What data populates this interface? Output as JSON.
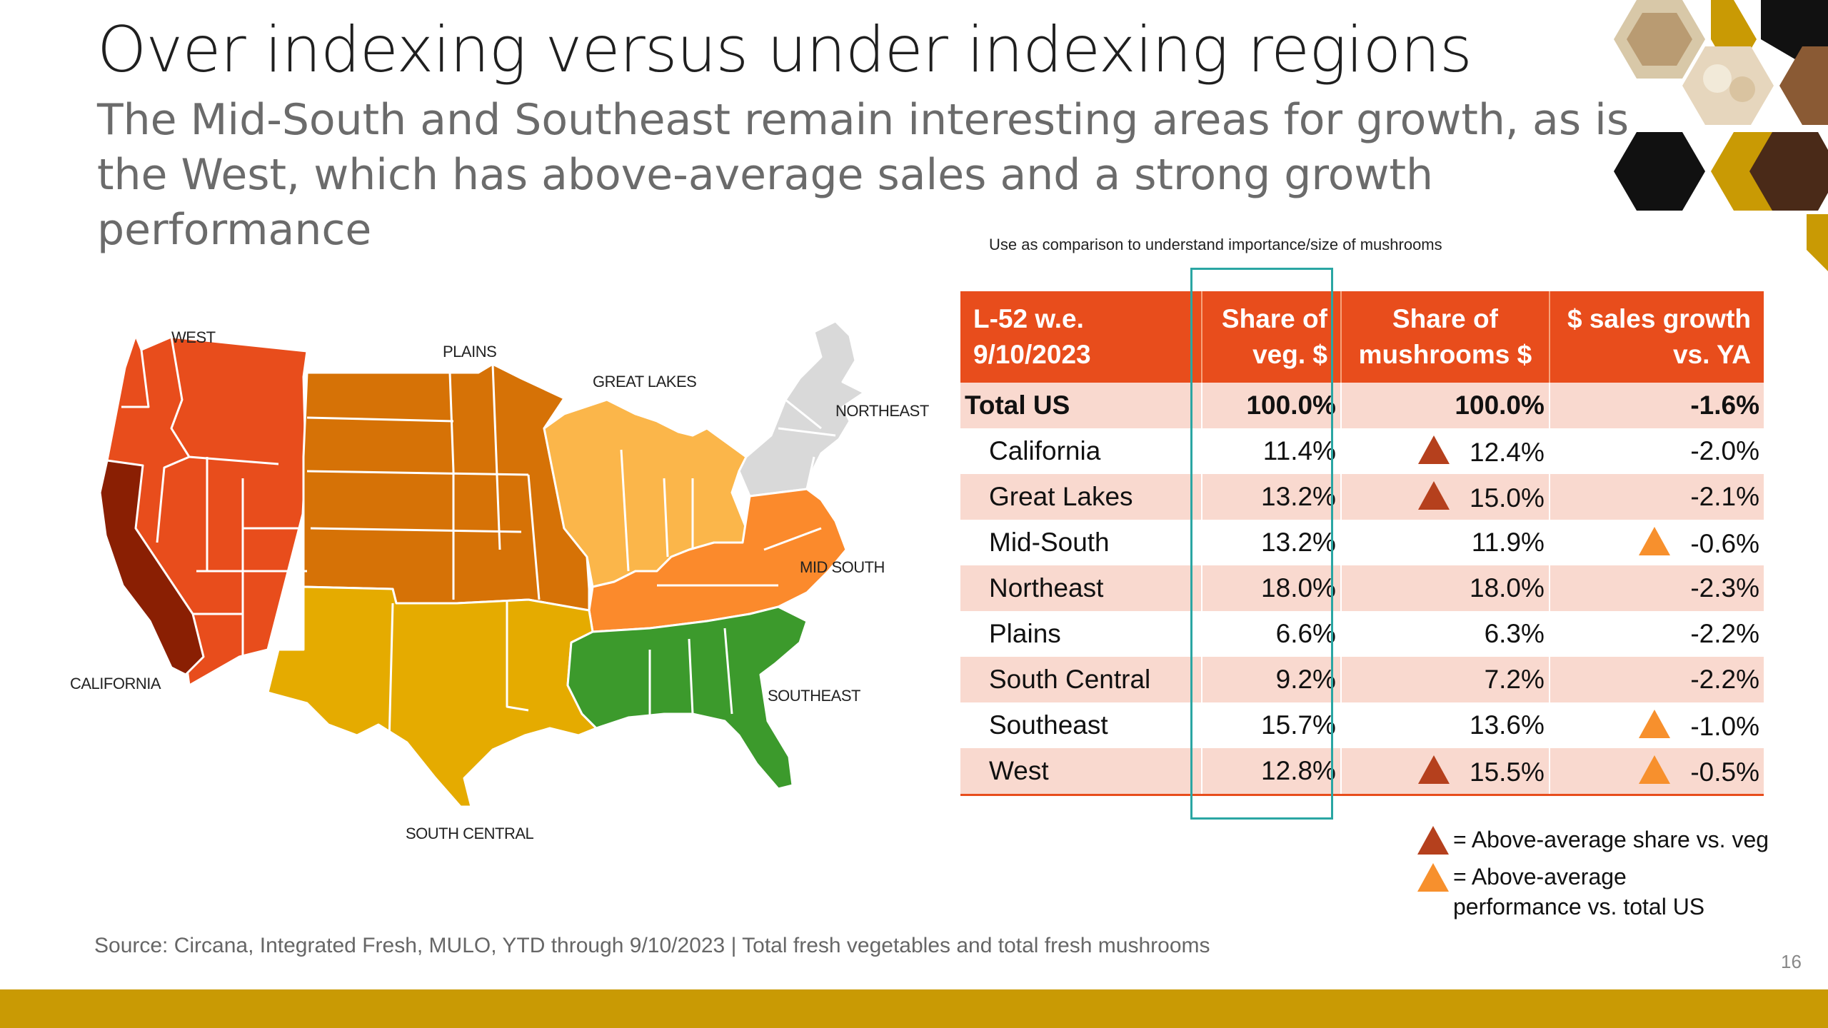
{
  "title": "Over indexing versus under indexing regions",
  "subtitle": "The Mid-South and Southeast remain interesting areas for growth, as is the West, which has above-average sales and a strong growth performance",
  "map": {
    "labels": {
      "west": "WEST",
      "plains": "PLAINS",
      "great_lakes": "GREAT LAKES",
      "northeast": "NORTHEAST",
      "mid_south": "MID SOUTH",
      "california": "CALIFORNIA",
      "southeast": "SOUTHEAST",
      "south_central": "SOUTH CENTRAL"
    },
    "colors": {
      "west": "#e84d1c",
      "california": "#8a1f03",
      "plains": "#d67206",
      "great_lakes": "#fbb64a",
      "northeast": "#d9d9d9",
      "mid_south": "#fb8a2c",
      "south_central": "#e5ab00",
      "southeast": "#3c9a2c"
    }
  },
  "table": {
    "note": "Use as comparison to understand importance/size of mushrooms",
    "headers": {
      "period": "L-52 w.e. 9/10/2023",
      "share_veg": "Share of veg. $",
      "share_mush": "Share of mushrooms $",
      "growth": "$ sales growth vs. YA"
    },
    "rows": [
      {
        "region": "Total US",
        "share_veg": "100.0%",
        "share_mush": "100.0%",
        "growth": "-1.6%"
      },
      {
        "region": "California",
        "share_veg": "11.4%",
        "share_mush": "12.4%",
        "growth": "-2.0%"
      },
      {
        "region": "Great Lakes",
        "share_veg": "13.2%",
        "share_mush": "15.0%",
        "growth": "-2.1%"
      },
      {
        "region": "Mid-South",
        "share_veg": "13.2%",
        "share_mush": "11.9%",
        "growth": "-0.6%"
      },
      {
        "region": "Northeast",
        "share_veg": "18.0%",
        "share_mush": "18.0%",
        "growth": "-2.3%"
      },
      {
        "region": "Plains",
        "share_veg": "6.6%",
        "share_mush": "6.3%",
        "growth": "-2.2%"
      },
      {
        "region": "South Central",
        "share_veg": "9.2%",
        "share_mush": "7.2%",
        "growth": "-2.2%"
      },
      {
        "region": "Southeast",
        "share_veg": "15.7%",
        "share_mush": "13.6%",
        "growth": "-1.0%"
      },
      {
        "region": "West",
        "share_veg": "12.8%",
        "share_mush": "15.5%",
        "growth": "-0.5%"
      }
    ]
  },
  "legend": {
    "dark": "= Above-average share vs. veg",
    "light_line1": "= Above-average",
    "light_line2": "performance vs. total US",
    "dark_color": "#b5401d",
    "light_color": "#f7902d"
  },
  "source": "Source: Circana, Integrated Fresh, MULO, YTD through 9/10/2023 | Total fresh vegetables and total fresh mushrooms",
  "page_number": "16"
}
